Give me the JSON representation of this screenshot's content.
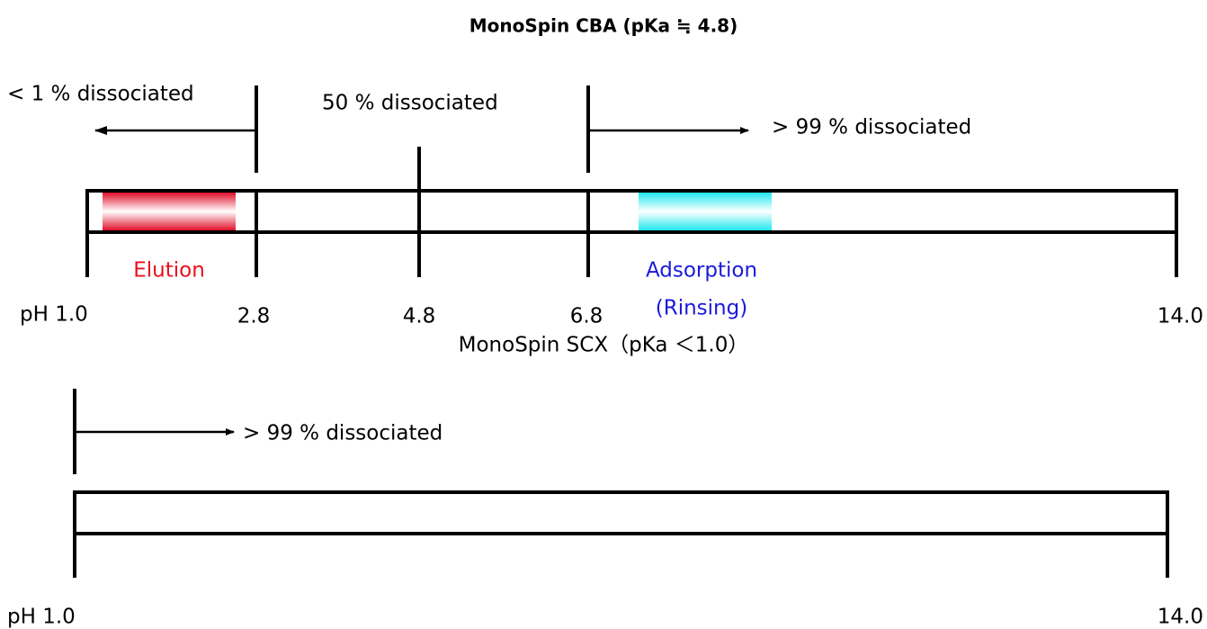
{
  "header": {
    "title": "MonoSpin CBA (pKa ≒ 4.8)"
  },
  "cba": {
    "regions": [
      "< 1 % dissociated",
      "50 % dissociated",
      "> 99 % dissociated"
    ],
    "bands": {
      "elution": "Elution",
      "adsorption": [
        "Adsorption",
        "(Rinsing)"
      ]
    },
    "ticks": [
      "pH 1.0",
      "2.8",
      "4.8",
      "6.8",
      "14.0"
    ]
  },
  "scx": {
    "title": "MonoSpin SCX（pKa ＜1.0）",
    "region": "> 99 % dissociated",
    "ticks": [
      "pH 1.0",
      "14.0"
    ]
  }
}
